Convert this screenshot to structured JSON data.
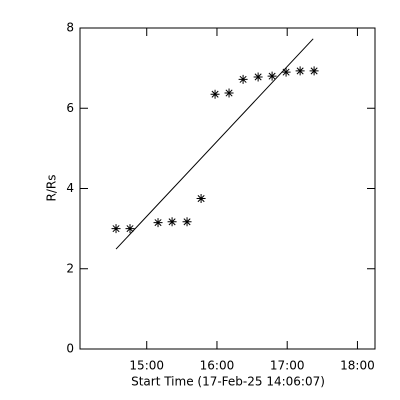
{
  "chart_data": {
    "type": "scatter",
    "x_label": "Start Time (17-Feb-25 14:06:07)",
    "y_label": "R/Rs",
    "x": [
      14.563,
      14.762,
      15.161,
      15.361,
      15.574,
      15.774,
      15.973,
      16.172,
      16.372,
      16.586,
      16.785,
      16.984,
      17.184,
      17.383
    ],
    "series": [
      {
        "color": "#000000",
        "marker": "asterisk",
        "values": [
          3.0,
          3.0,
          3.15,
          3.17,
          3.17,
          3.75,
          6.35,
          6.38,
          6.72,
          6.78,
          6.8,
          6.9,
          6.93,
          6.93
        ]
      }
    ],
    "fit": {
      "color": "#000000",
      "x": [
        14.563,
        17.37
      ],
      "values": [
        2.49,
        7.73
      ]
    },
    "xlim": [
      14.05,
      18.25
    ],
    "ylim": [
      0,
      8
    ],
    "xticks": [
      {
        "value": 15,
        "label": "15:00"
      },
      {
        "value": 16,
        "label": "16:00"
      },
      {
        "value": 17,
        "label": "17:00"
      },
      {
        "value": 18,
        "label": "18:00"
      }
    ],
    "yticks": [
      0,
      2,
      4,
      6,
      8
    ]
  }
}
